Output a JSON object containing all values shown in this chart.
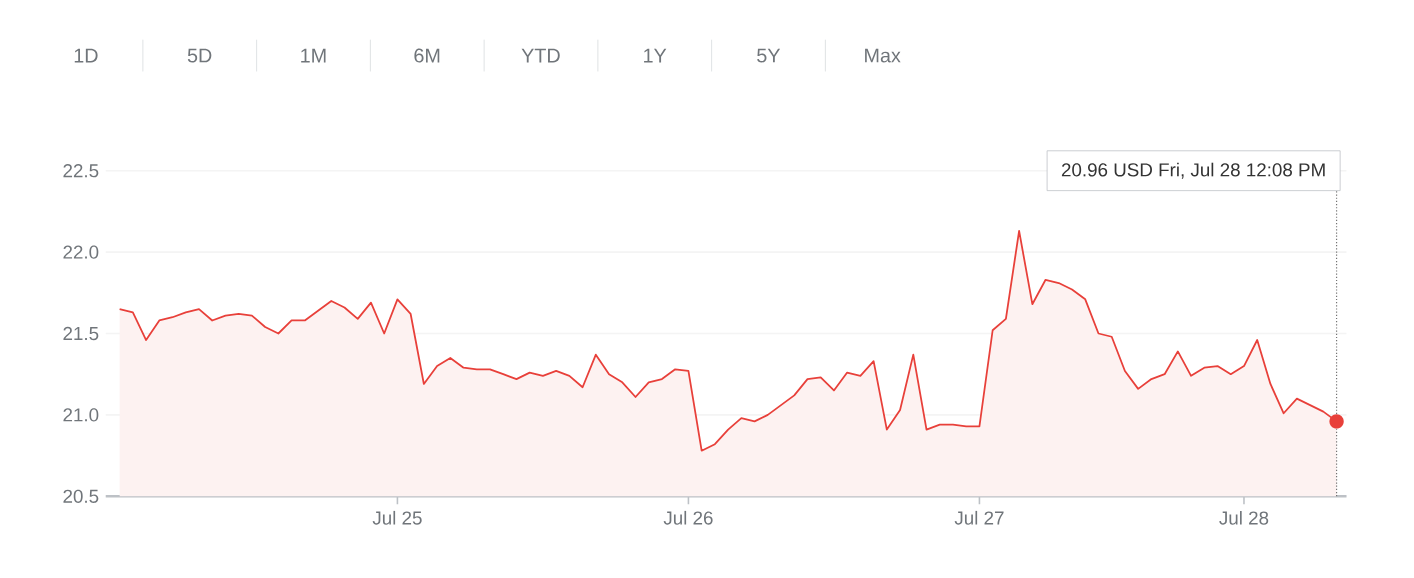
{
  "chart_data": {
    "type": "area",
    "grid": "y",
    "categories": [
      null,
      null,
      null,
      null,
      null,
      null,
      null,
      null,
      null,
      null,
      null,
      null,
      null,
      null,
      null,
      null,
      null,
      null,
      null,
      null,
      null,
      "Jul 25",
      null,
      null,
      null,
      null,
      null,
      null,
      null,
      null,
      null,
      null,
      null,
      null,
      null,
      null,
      null,
      null,
      null,
      null,
      null,
      null,
      null,
      "Jul 26",
      null,
      null,
      null,
      null,
      null,
      null,
      null,
      null,
      null,
      null,
      null,
      null,
      null,
      null,
      null,
      null,
      null,
      null,
      null,
      null,
      null,
      "Jul 27",
      null,
      null,
      null,
      null,
      null,
      null,
      null,
      null,
      null,
      null,
      null,
      null,
      null,
      null,
      null,
      null,
      null,
      null,
      null,
      "Jul 28",
      null,
      null,
      null,
      null,
      null,
      null,
      null
    ],
    "series": [
      {
        "color": "#e8403a",
        "values": [
          21.65,
          21.63,
          21.46,
          21.58,
          21.6,
          21.63,
          21.65,
          21.58,
          21.61,
          21.62,
          21.61,
          21.54,
          21.5,
          21.58,
          21.58,
          21.64,
          21.7,
          21.66,
          21.59,
          21.69,
          21.5,
          21.71,
          21.62,
          21.19,
          21.3,
          21.35,
          21.29,
          21.28,
          21.28,
          21.25,
          21.22,
          21.26,
          21.24,
          21.27,
          21.24,
          21.17,
          21.37,
          21.25,
          21.2,
          21.11,
          21.2,
          21.22,
          21.28,
          21.27,
          20.78,
          20.82,
          20.91,
          20.98,
          20.96,
          21.0,
          21.06,
          21.12,
          21.22,
          21.23,
          21.15,
          21.26,
          21.24,
          21.33,
          20.91,
          21.03,
          21.37,
          20.91,
          20.94,
          20.94,
          20.93,
          20.93,
          21.52,
          21.59,
          22.13,
          21.68,
          21.83,
          21.81,
          21.77,
          21.71,
          21.5,
          21.48,
          21.27,
          21.16,
          21.22,
          21.25,
          21.39,
          21.24,
          21.29,
          21.3,
          21.25,
          21.3,
          21.46,
          21.19,
          21.01,
          21.1,
          21.06,
          21.02,
          20.96
        ]
      }
    ],
    "ylim": [
      20.5,
      22.5
    ],
    "yticks": [
      20.5,
      {
        "value": 21,
        "label": "21.0"
      },
      21.5,
      {
        "value": 22,
        "label": "22.0"
      },
      22.5
    ],
    "annotations": [
      "20.96 USD  Fri, Jul 28 12:08 PM",
      "1D",
      "5D",
      "1M",
      "6M",
      "YTD",
      "1Y",
      "5Y",
      "Max"
    ]
  }
}
